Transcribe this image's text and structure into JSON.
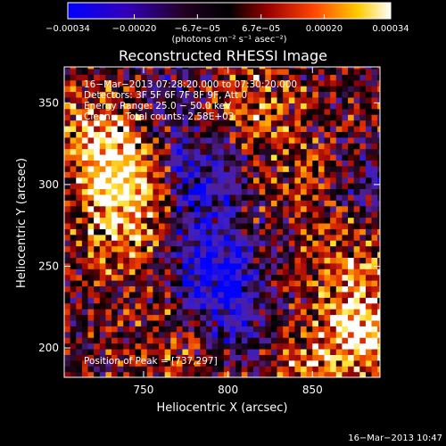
{
  "chart_data": {
    "type": "heatmap",
    "title": "Reconstructed RHESSI Image",
    "xlabel": "Heliocentric X (arcsec)",
    "ylabel": "Heliocentric Y (arcsec)",
    "xlim": [
      703,
      890
    ],
    "ylim": [
      182,
      372
    ],
    "x_ticks": [
      750,
      800,
      850
    ],
    "y_ticks": [
      200,
      250,
      300,
      350
    ],
    "colorbar": {
      "range": [
        -0.00034,
        0.00034
      ],
      "tick_labels": [
        "−0.00034",
        "−0.00020",
        "−6.7e−05",
        "6.7e−05",
        "0.00020",
        "0.00034"
      ],
      "tick_values": [
        -0.00034,
        -0.0002,
        -6.7e-05,
        6.7e-05,
        0.0002,
        0.00034
      ],
      "unit_label": "(photons cm⁻² s⁻¹ asec⁻²)",
      "colormap": [
        "#000000",
        "#3300cc",
        "#0000ff",
        "#8800aa",
        "#cc0033",
        "#ff6600",
        "#ffcc00",
        "#ffffff"
      ]
    },
    "info_lines": [
      "16−Mar−2013 07:28:20.000 to 07:30:20.000",
      "Detectors: 3F 5F 6F 7F 8F 9F, Att 0",
      "Energy Range: 25.0 − 50.0 keV",
      "Clean     Total counts: 2.58E+03"
    ],
    "peak_label": "Position of Peak = [737,297]",
    "peak_position": [
      737,
      297
    ],
    "regions": [
      {
        "x": 737,
        "y": 297,
        "intensity": 1.0
      },
      {
        "x": 724,
        "y": 330,
        "intensity": 0.8
      },
      {
        "x": 735,
        "y": 262,
        "intensity": 0.45
      },
      {
        "x": 880,
        "y": 205,
        "intensity": 0.9
      },
      {
        "x": 870,
        "y": 245,
        "intensity": 0.55
      },
      {
        "x": 852,
        "y": 300,
        "intensity": 0.5
      },
      {
        "x": 815,
        "y": 348,
        "intensity": 0.45
      },
      {
        "x": 845,
        "y": 190,
        "intensity": 0.4
      },
      {
        "x": 770,
        "y": 200,
        "intensity": 0.35
      },
      {
        "x": 780,
        "y": 300,
        "intensity": -0.75
      },
      {
        "x": 790,
        "y": 250,
        "intensity": -0.85
      },
      {
        "x": 800,
        "y": 215,
        "intensity": -0.6
      },
      {
        "x": 875,
        "y": 300,
        "intensity": -0.45
      },
      {
        "x": 760,
        "y": 345,
        "intensity": -0.35
      }
    ]
  },
  "footer": {
    "timestamp": "16−Mar−2013 10:47"
  }
}
